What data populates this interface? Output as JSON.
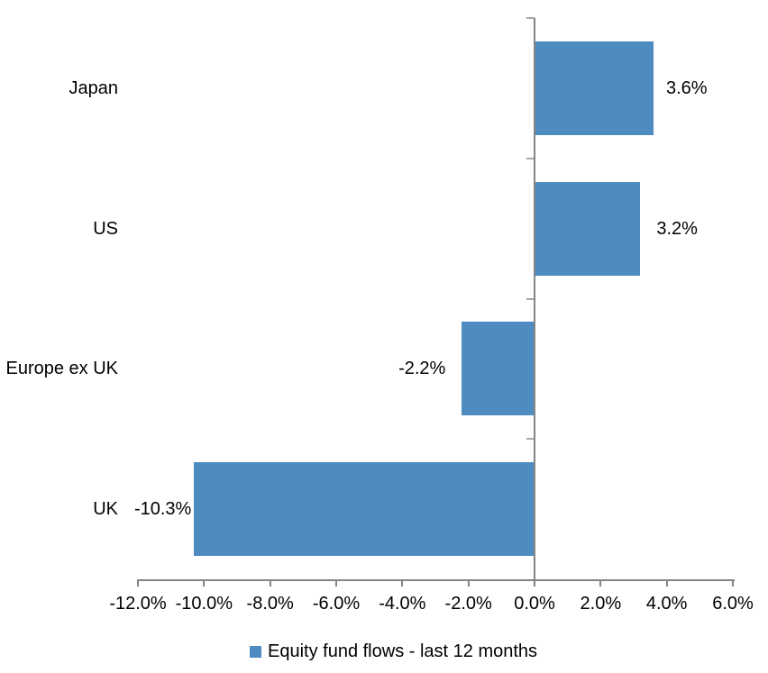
{
  "chart_data": {
    "type": "bar",
    "orientation": "horizontal",
    "title": "",
    "xlabel": "",
    "ylabel": "",
    "categories": [
      "Japan",
      "US",
      "Europe ex UK",
      "UK"
    ],
    "values": [
      3.6,
      3.2,
      -2.2,
      -10.3
    ],
    "data_labels": [
      "3.6%",
      "3.2%",
      "-2.2%",
      "-10.3%"
    ],
    "series_name": "Equity fund flows - last 12 months",
    "xlim": [
      -12,
      6
    ],
    "x_ticks": [
      -12,
      -10,
      -8,
      -6,
      -4,
      -2,
      0,
      2,
      4,
      6
    ],
    "x_tick_labels": [
      "-12.0%",
      "-10.0%",
      "-8.0%",
      "-6.0%",
      "-4.0%",
      "-2.0%",
      "0.0%",
      "2.0%",
      "4.0%",
      "6.0%"
    ],
    "grid": false,
    "legend_position": "bottom",
    "colors": {
      "bar": "#4E8BC0",
      "axis": "#848484",
      "category_tick": "#A6A6A6",
      "text": "#000000",
      "background": "#FFFFFF"
    }
  },
  "legend": {
    "label": "Equity fund flows - last 12 months"
  }
}
